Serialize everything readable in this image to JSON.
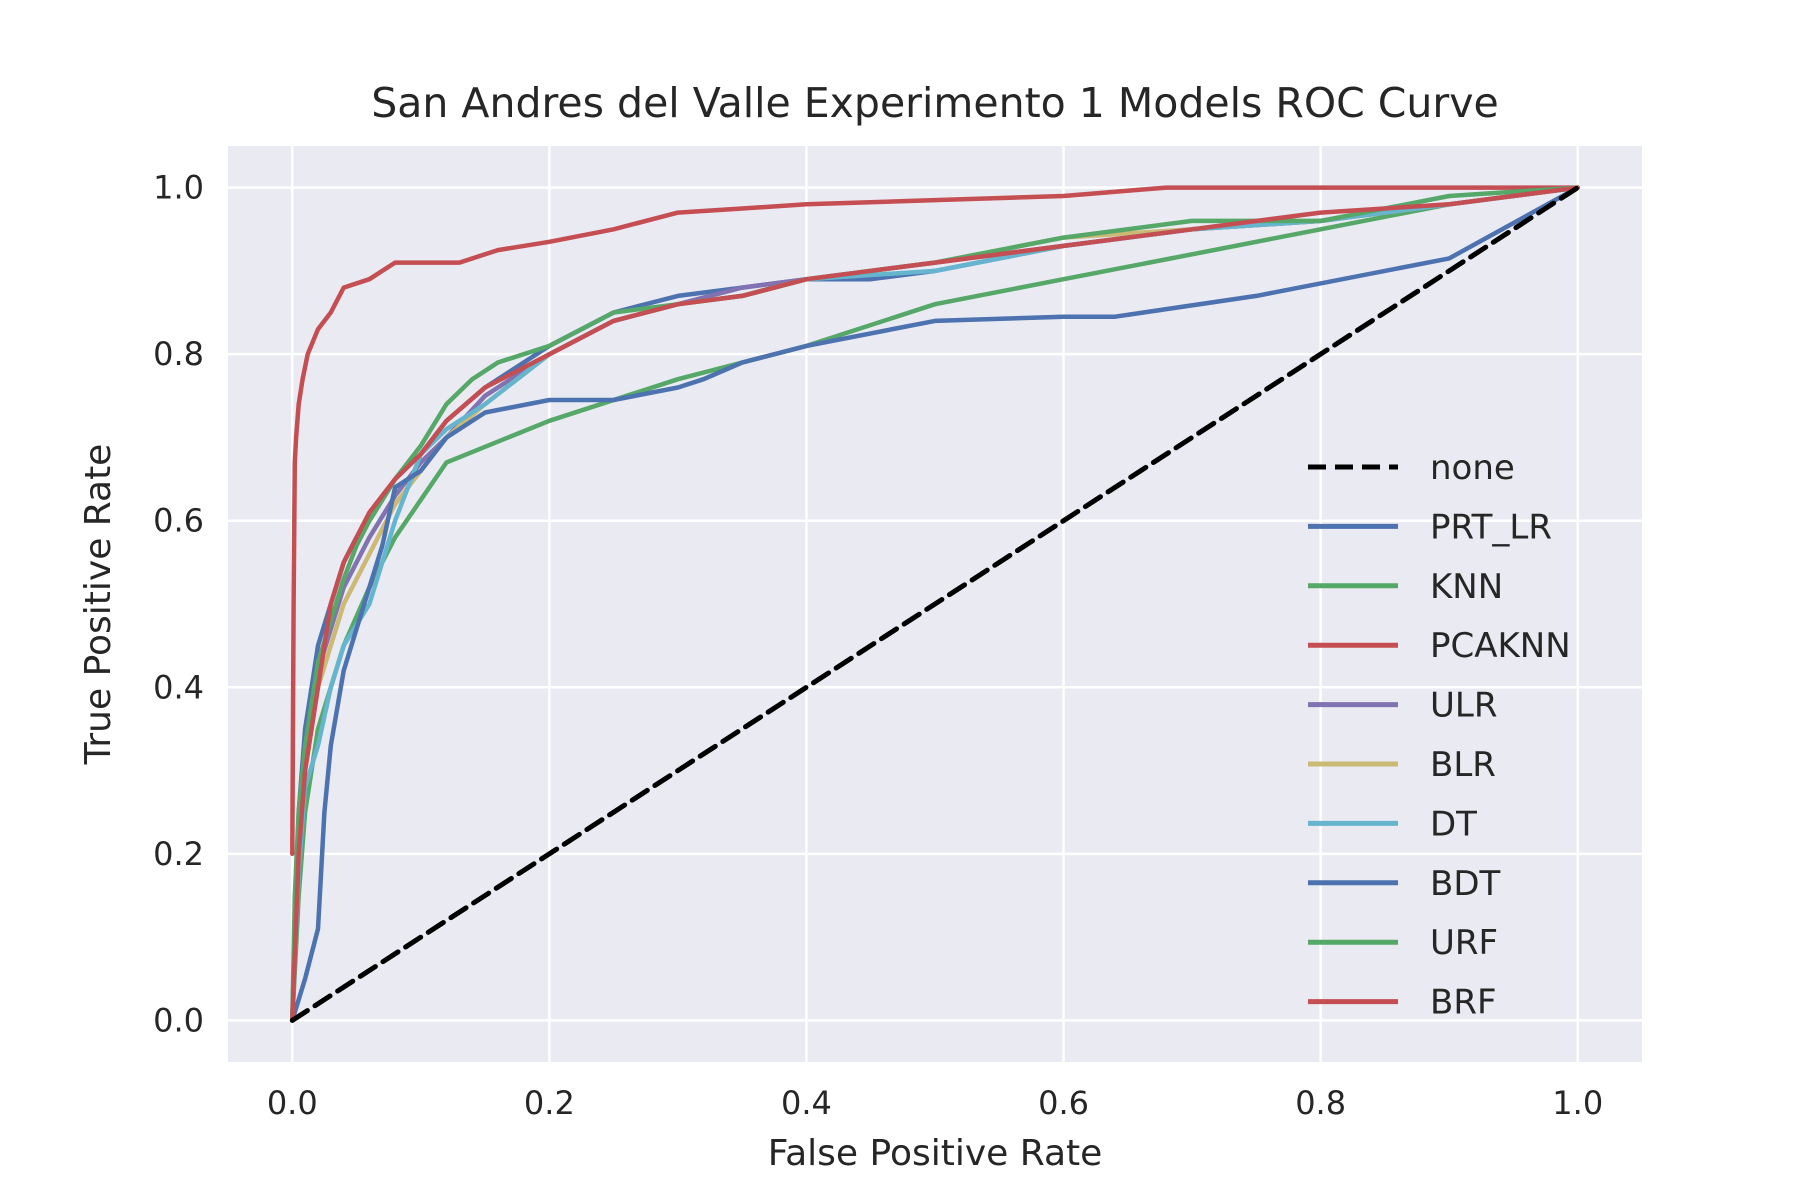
{
  "chart_data": {
    "type": "line",
    "title": "San Andres del Valle Experimento 1 Models ROC Curve",
    "xlabel": "False Positive Rate",
    "ylabel": "True Positive Rate",
    "xlim": [
      -0.05,
      1.05
    ],
    "ylim": [
      -0.05,
      1.05
    ],
    "xticks": [
      0.0,
      0.2,
      0.4,
      0.6,
      0.8,
      1.0
    ],
    "yticks": [
      0.0,
      0.2,
      0.4,
      0.6,
      0.8,
      1.0
    ],
    "xtick_labels": [
      "0.0",
      "0.2",
      "0.4",
      "0.6",
      "0.8",
      "1.0"
    ],
    "ytick_labels": [
      "0.0",
      "0.2",
      "0.4",
      "0.6",
      "0.8",
      "1.0"
    ],
    "grid": true,
    "legend_position": "center-right",
    "series": [
      {
        "name": "none",
        "color": "#000000",
        "dash": true,
        "x": [
          0,
          1
        ],
        "y": [
          0,
          1
        ]
      },
      {
        "name": "PRT_LR",
        "color": "#4c72b0",
        "x": [
          0,
          0.005,
          0.01,
          0.015,
          0.02,
          0.03,
          0.04,
          0.05,
          0.06,
          0.08,
          0.1,
          0.12,
          0.15,
          0.2,
          0.25,
          0.3,
          0.35,
          0.4,
          0.45,
          0.5,
          0.6,
          0.7,
          0.8,
          0.9,
          1.0
        ],
        "y": [
          0,
          0.25,
          0.35,
          0.4,
          0.45,
          0.5,
          0.55,
          0.58,
          0.6,
          0.65,
          0.68,
          0.72,
          0.76,
          0.81,
          0.85,
          0.87,
          0.88,
          0.89,
          0.89,
          0.9,
          0.93,
          0.95,
          0.96,
          0.98,
          1.0
        ]
      },
      {
        "name": "KNN",
        "color": "#55a868",
        "x": [
          0,
          0.005,
          0.01,
          0.02,
          0.04,
          0.06,
          0.08,
          0.12,
          0.2,
          0.3,
          0.4,
          0.5,
          0.6,
          0.7,
          0.8,
          0.9,
          1.0
        ],
        "y": [
          0,
          0.15,
          0.25,
          0.35,
          0.45,
          0.52,
          0.58,
          0.67,
          0.72,
          0.77,
          0.81,
          0.86,
          0.89,
          0.92,
          0.95,
          0.98,
          1.0
        ]
      },
      {
        "name": "PCAKNN",
        "color": "#c44e52",
        "x": [
          0,
          0.001,
          0.002,
          0.003,
          0.005,
          0.008,
          0.012,
          0.02,
          0.03,
          0.04,
          0.06,
          0.08,
          0.1,
          0.13,
          0.16,
          0.2,
          0.25,
          0.3,
          0.35,
          0.4,
          0.5,
          0.6,
          0.68,
          0.8,
          1.0
        ],
        "y": [
          0.2,
          0.5,
          0.67,
          0.7,
          0.74,
          0.77,
          0.8,
          0.83,
          0.85,
          0.88,
          0.89,
          0.91,
          0.91,
          0.91,
          0.925,
          0.935,
          0.95,
          0.97,
          0.975,
          0.98,
          0.985,
          0.99,
          1.0,
          1.0,
          1.0
        ]
      },
      {
        "name": "ULR",
        "color": "#8172b2",
        "x": [
          0,
          0.005,
          0.01,
          0.02,
          0.03,
          0.04,
          0.06,
          0.08,
          0.1,
          0.12,
          0.15,
          0.2,
          0.25,
          0.3,
          0.35,
          0.4,
          0.5,
          0.6,
          0.7,
          0.8,
          0.9,
          1.0
        ],
        "y": [
          0,
          0.22,
          0.33,
          0.42,
          0.47,
          0.52,
          0.58,
          0.63,
          0.67,
          0.7,
          0.75,
          0.8,
          0.84,
          0.86,
          0.88,
          0.89,
          0.91,
          0.93,
          0.95,
          0.96,
          0.98,
          1.0
        ]
      },
      {
        "name": "BLR",
        "color": "#ccb974",
        "x": [
          0,
          0.005,
          0.01,
          0.02,
          0.03,
          0.04,
          0.06,
          0.08,
          0.1,
          0.12,
          0.15,
          0.2,
          0.25,
          0.3,
          0.35,
          0.4,
          0.5,
          0.6,
          0.7,
          0.8,
          0.9,
          1.0
        ],
        "y": [
          0,
          0.2,
          0.3,
          0.4,
          0.45,
          0.5,
          0.56,
          0.62,
          0.66,
          0.7,
          0.74,
          0.8,
          0.84,
          0.86,
          0.87,
          0.89,
          0.91,
          0.94,
          0.95,
          0.96,
          0.98,
          1.0
        ]
      },
      {
        "name": "DT",
        "color": "#64b5cd",
        "x": [
          0,
          0.005,
          0.01,
          0.02,
          0.03,
          0.04,
          0.06,
          0.08,
          0.1,
          0.12,
          0.15,
          0.2,
          0.25,
          0.3,
          0.35,
          0.4,
          0.5,
          0.6,
          0.7,
          0.8,
          0.9,
          1.0
        ],
        "y": [
          0,
          0.18,
          0.28,
          0.33,
          0.4,
          0.45,
          0.5,
          0.6,
          0.68,
          0.71,
          0.74,
          0.8,
          0.84,
          0.86,
          0.87,
          0.89,
          0.9,
          0.93,
          0.95,
          0.96,
          0.98,
          1.0
        ]
      },
      {
        "name": "BDT",
        "color": "#4c72b0",
        "x": [
          0,
          0.01,
          0.02,
          0.025,
          0.03,
          0.04,
          0.05,
          0.06,
          0.07,
          0.08,
          0.1,
          0.12,
          0.15,
          0.2,
          0.25,
          0.3,
          0.32,
          0.35,
          0.4,
          0.5,
          0.6,
          0.64,
          0.75,
          0.9,
          1.0
        ],
        "y": [
          0,
          0.05,
          0.11,
          0.25,
          0.33,
          0.42,
          0.47,
          0.52,
          0.57,
          0.64,
          0.66,
          0.7,
          0.73,
          0.745,
          0.745,
          0.76,
          0.77,
          0.79,
          0.81,
          0.84,
          0.845,
          0.845,
          0.87,
          0.915,
          1.0
        ]
      },
      {
        "name": "URF",
        "color": "#55a868",
        "x": [
          0,
          0.002,
          0.005,
          0.01,
          0.02,
          0.03,
          0.04,
          0.05,
          0.06,
          0.08,
          0.1,
          0.12,
          0.14,
          0.16,
          0.2,
          0.25,
          0.3,
          0.35,
          0.4,
          0.5,
          0.6,
          0.7,
          0.8,
          0.9,
          1.0
        ],
        "y": [
          0,
          0.15,
          0.25,
          0.33,
          0.43,
          0.48,
          0.53,
          0.57,
          0.6,
          0.65,
          0.69,
          0.74,
          0.77,
          0.79,
          0.81,
          0.85,
          0.86,
          0.87,
          0.89,
          0.91,
          0.94,
          0.96,
          0.96,
          0.99,
          1.0
        ]
      },
      {
        "name": "BRF",
        "color": "#c44e52",
        "x": [
          0,
          0.005,
          0.01,
          0.02,
          0.03,
          0.04,
          0.05,
          0.06,
          0.08,
          0.1,
          0.12,
          0.15,
          0.2,
          0.25,
          0.3,
          0.35,
          0.4,
          0.5,
          0.6,
          0.7,
          0.8,
          0.9,
          1.0
        ],
        "y": [
          0,
          0.2,
          0.3,
          0.4,
          0.5,
          0.55,
          0.58,
          0.61,
          0.65,
          0.68,
          0.72,
          0.76,
          0.8,
          0.84,
          0.86,
          0.87,
          0.89,
          0.91,
          0.93,
          0.95,
          0.97,
          0.98,
          1.0
        ]
      }
    ]
  }
}
